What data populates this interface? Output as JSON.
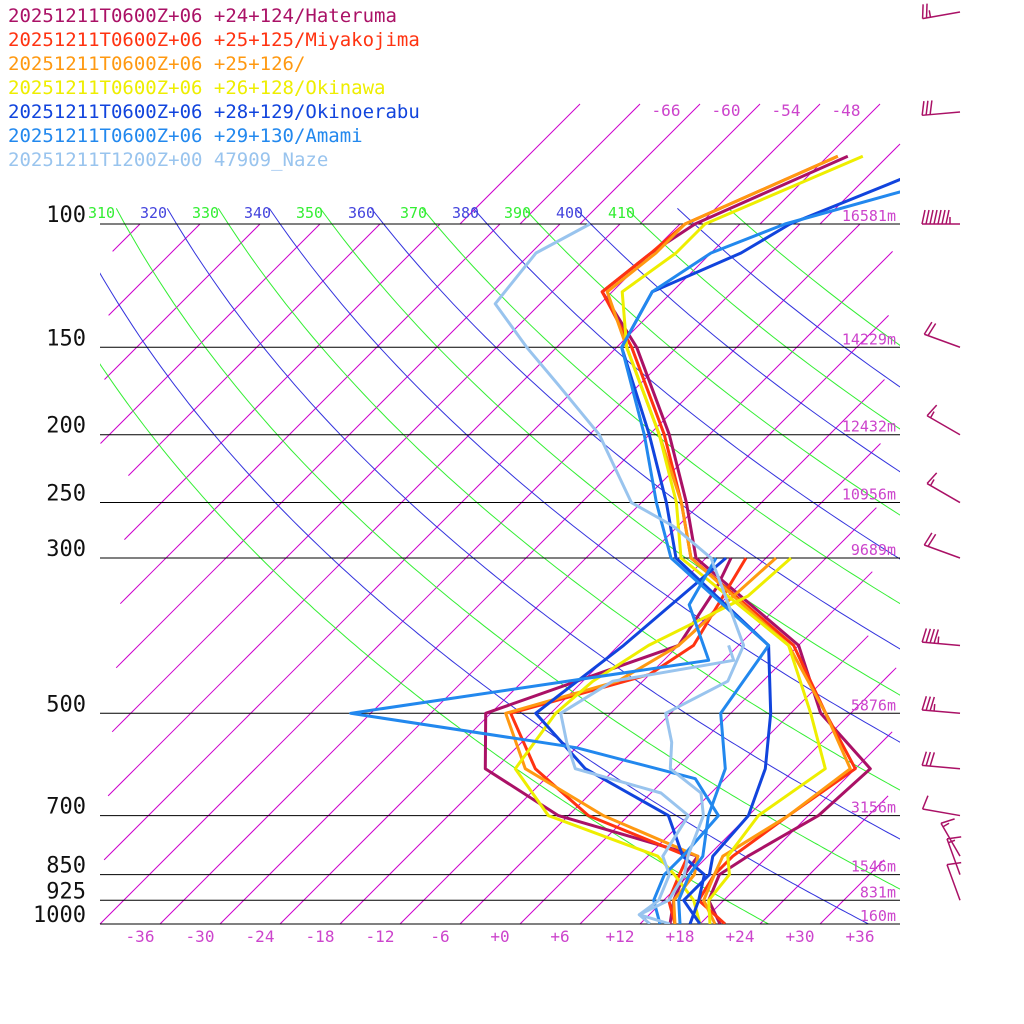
{
  "chart_data": {
    "type": "line",
    "subtype": "skew-T log-P sounding",
    "y_axis": {
      "scale": "log",
      "pressure_levels_hPa": [
        100,
        150,
        200,
        250,
        300,
        500,
        700,
        850,
        925,
        1000
      ],
      "tick_labels": [
        "100",
        "150",
        "200",
        "250",
        "300",
        "500",
        "700",
        "850",
        "925",
        "1000"
      ],
      "range_hPa": [
        1000,
        80
      ]
    },
    "x_axis": {
      "tick_labels": [
        "-36",
        "-30",
        "-24",
        "-18",
        "-12",
        "-6",
        "+0",
        "+6",
        "+12",
        "+18",
        "+24",
        "+30",
        "+36"
      ],
      "range_C": [
        -40,
        40
      ]
    },
    "height_labels": [
      {
        "p": 100,
        "label": "16581m"
      },
      {
        "p": 150,
        "label": "14229m"
      },
      {
        "p": 200,
        "label": "12432m"
      },
      {
        "p": 250,
        "label": "10956m"
      },
      {
        "p": 300,
        "label": "9689m"
      },
      {
        "p": 500,
        "label": "5876m"
      },
      {
        "p": 700,
        "label": "3156m"
      },
      {
        "p": 850,
        "label": "1546m"
      },
      {
        "p": 925,
        "label": "831m"
      },
      {
        "p": 1000,
        "label": "160m"
      }
    ],
    "upper_isotherm_labels": [
      "-66",
      "-60",
      "-54",
      "-48"
    ],
    "theta_labels": [
      {
        "text": "310",
        "color": "#33ee33"
      },
      {
        "text": "320",
        "color": "#4444dd"
      },
      {
        "text": "330",
        "color": "#33ee33"
      },
      {
        "text": "340",
        "color": "#4444dd"
      },
      {
        "text": "350",
        "color": "#33ee33"
      },
      {
        "text": "360",
        "color": "#4444dd"
      },
      {
        "text": "370",
        "color": "#33ee33"
      },
      {
        "text": "380",
        "color": "#4444dd"
      },
      {
        "text": "390",
        "color": "#33ee33"
      },
      {
        "text": "400",
        "color": "#4444dd"
      },
      {
        "text": "410",
        "color": "#33ee33"
      }
    ],
    "colors": {
      "isotherm": "#cc00cc",
      "isobar": "#000000",
      "theta_a": "#33ee33",
      "theta_b": "#3333dd",
      "axis_text": "#cc44cc",
      "pressure_text": "#111111",
      "wind_barb": "#aa1166"
    },
    "series": [
      {
        "name": "20251211T0600Z+06 +24+124/Hateruma",
        "color": "#aa1166",
        "temperature": [
          [
            1000,
            22.0
          ],
          [
            925,
            18.5
          ],
          [
            850,
            17.0
          ],
          [
            800,
            18.0
          ],
          [
            700,
            21.0
          ],
          [
            600,
            21.5
          ],
          [
            500,
            11.0
          ],
          [
            400,
            2.0
          ],
          [
            300,
            -17.0
          ],
          [
            250,
            -23.5
          ],
          [
            200,
            -32.0
          ],
          [
            150,
            -44.0
          ],
          [
            125,
            -53.0
          ],
          [
            110,
            -52.0
          ],
          [
            100,
            -50.5
          ],
          [
            80,
            -42.0
          ]
        ],
        "dewpoint": [
          [
            1000,
            17.0
          ],
          [
            925,
            15.0
          ],
          [
            850,
            13.5
          ],
          [
            800,
            13.0
          ],
          [
            700,
            -5.0
          ],
          [
            600,
            -17.0
          ],
          [
            500,
            -22.5
          ],
          [
            400,
            -10.0
          ],
          [
            330,
            -12.0
          ],
          [
            300,
            -13.5
          ]
        ]
      },
      {
        "name": "20251211T0600Z+06 +25+125/Miyakojima",
        "color": "#ff3311",
        "temperature": [
          [
            1000,
            22.5
          ],
          [
            925,
            17.5
          ],
          [
            850,
            16.5
          ],
          [
            800,
            16.5
          ],
          [
            700,
            18.0
          ],
          [
            600,
            20.0
          ],
          [
            500,
            11.5
          ],
          [
            400,
            1.5
          ],
          [
            300,
            -17.5
          ],
          [
            250,
            -24.0
          ],
          [
            200,
            -32.5
          ],
          [
            150,
            -44.5
          ],
          [
            125,
            -53.0
          ],
          [
            110,
            -52.0
          ],
          [
            100,
            -51.5
          ],
          [
            80,
            -43.0
          ]
        ],
        "dewpoint": [
          [
            1000,
            17.5
          ],
          [
            925,
            14.5
          ],
          [
            850,
            13.0
          ],
          [
            800,
            12.0
          ],
          [
            700,
            -2.0
          ],
          [
            600,
            -12.0
          ],
          [
            500,
            -20.0
          ],
          [
            440,
            -10.0
          ],
          [
            400,
            -8.5
          ],
          [
            300,
            -12.0
          ]
        ]
      },
      {
        "name": "20251211T0600Z+06 +25+126/",
        "color": "#ff9911",
        "temperature": [
          [
            1000,
            21.5
          ],
          [
            925,
            18.0
          ],
          [
            850,
            16.5
          ],
          [
            800,
            15.5
          ],
          [
            700,
            18.0
          ],
          [
            600,
            19.5
          ],
          [
            500,
            11.5
          ],
          [
            400,
            1.0
          ],
          [
            300,
            -17.5
          ],
          [
            250,
            -24.0
          ],
          [
            200,
            -33.0
          ],
          [
            150,
            -45.0
          ],
          [
            125,
            -52.5
          ],
          [
            110,
            -51.5
          ],
          [
            100,
            -51.5
          ],
          [
            80,
            -43.0
          ]
        ],
        "dewpoint": [
          [
            1000,
            17.5
          ],
          [
            925,
            15.0
          ],
          [
            850,
            14.5
          ],
          [
            800,
            13.0
          ],
          [
            700,
            -0.5
          ],
          [
            600,
            -13.0
          ],
          [
            500,
            -20.5
          ],
          [
            450,
            -12.5
          ],
          [
            400,
            -10.0
          ],
          [
            300,
            -9.0
          ]
        ]
      },
      {
        "name": "20251211T0600Z+06 +26+128/Okinawa",
        "color": "#eeee00",
        "temperature": [
          [
            1000,
            21.0
          ],
          [
            925,
            18.5
          ],
          [
            850,
            18.0
          ],
          [
            800,
            16.0
          ],
          [
            700,
            15.0
          ],
          [
            600,
            17.0
          ],
          [
            500,
            10.0
          ],
          [
            400,
            1.0
          ],
          [
            300,
            -18.5
          ],
          [
            250,
            -24.5
          ],
          [
            200,
            -33.0
          ],
          [
            150,
            -45.0
          ],
          [
            125,
            -51.0
          ],
          [
            110,
            -49.5
          ],
          [
            100,
            -49.5
          ],
          [
            80,
            -40.5
          ]
        ],
        "dewpoint": [
          [
            1000,
            20.0
          ],
          [
            925,
            17.0
          ],
          [
            850,
            12.5
          ],
          [
            800,
            9.0
          ],
          [
            700,
            -6.0
          ],
          [
            600,
            -14.0
          ],
          [
            500,
            -15.5
          ],
          [
            450,
            -15.0
          ],
          [
            400,
            -13.0
          ],
          [
            340,
            -8.0
          ],
          [
            300,
            -7.5
          ]
        ]
      },
      {
        "name": "20251211T0600Z+06 +28+129/Okinoerabu",
        "color": "#1144dd",
        "temperature": [
          [
            1000,
            20.0
          ],
          [
            925,
            16.0
          ],
          [
            850,
            16.0
          ],
          [
            800,
            14.5
          ],
          [
            700,
            14.0
          ],
          [
            600,
            11.0
          ],
          [
            500,
            6.0
          ],
          [
            400,
            -1.0
          ],
          [
            300,
            -19.0
          ],
          [
            250,
            -25.5
          ],
          [
            200,
            -34.0
          ],
          [
            150,
            -45.5
          ],
          [
            125,
            -48.0
          ],
          [
            110,
            -43.0
          ],
          [
            100,
            -41.0
          ],
          [
            80,
            -31.0
          ]
        ],
        "dewpoint": [
          [
            1000,
            19.0
          ],
          [
            925,
            17.5
          ],
          [
            850,
            15.5
          ],
          [
            800,
            11.5
          ],
          [
            700,
            6.0
          ],
          [
            600,
            -7.0
          ],
          [
            500,
            -17.5
          ],
          [
            400,
            -15.5
          ],
          [
            300,
            -14.0
          ]
        ]
      },
      {
        "name": "20251211T0600Z+06 +29+130/Amami",
        "color": "#2288ee",
        "temperature": [
          [
            1000,
            18.0
          ],
          [
            925,
            15.5
          ],
          [
            850,
            14.0
          ],
          [
            800,
            13.5
          ],
          [
            700,
            10.0
          ],
          [
            600,
            7.0
          ],
          [
            500,
            1.0
          ],
          [
            400,
            -1.0
          ],
          [
            300,
            -19.5
          ],
          [
            250,
            -26.5
          ],
          [
            200,
            -34.5
          ],
          [
            150,
            -45.5
          ],
          [
            125,
            -48.0
          ],
          [
            110,
            -46.0
          ],
          [
            100,
            -41.5
          ],
          [
            80,
            -24.0
          ]
        ],
        "dewpoint": [
          [
            1000,
            16.0
          ],
          [
            925,
            13.0
          ],
          [
            850,
            11.5
          ],
          [
            800,
            11.5
          ],
          [
            700,
            11.0
          ],
          [
            620,
            5.0
          ],
          [
            560,
            -10.0
          ],
          [
            500,
            -36.0
          ],
          [
            420,
            -5.5
          ],
          [
            350,
            -13.0
          ],
          [
            300,
            -15.0
          ]
        ]
      },
      {
        "name": "20251211T1200Z+00 47909_Naze",
        "color": "#99c4ee",
        "temperature": [
          [
            1000,
            15.0
          ],
          [
            970,
            13.0
          ],
          [
            925,
            14.5
          ],
          [
            850,
            13.5
          ],
          [
            800,
            12.0
          ],
          [
            700,
            9.5
          ],
          [
            650,
            7.0
          ],
          [
            600,
            1.5
          ],
          [
            550,
            -1.0
          ],
          [
            500,
            -4.5
          ],
          [
            450,
            -1.5
          ],
          [
            400,
            -3.5
          ],
          [
            330,
            -11.5
          ],
          [
            300,
            -15.5
          ],
          [
            270,
            -22.5
          ],
          [
            250,
            -29.0
          ],
          [
            200,
            -39.0
          ],
          [
            170,
            -48.0
          ],
          [
            150,
            -55.0
          ],
          [
            130,
            -62.5
          ],
          [
            110,
            -63.5
          ],
          [
            100,
            -61.0
          ]
        ],
        "dewpoint": [
          [
            1000,
            17.0
          ],
          [
            970,
            13.0
          ],
          [
            925,
            13.5
          ],
          [
            850,
            12.0
          ],
          [
            800,
            9.5
          ],
          [
            700,
            8.0
          ],
          [
            650,
            3.0
          ],
          [
            600,
            -8.0
          ],
          [
            550,
            -11.5
          ],
          [
            500,
            -15.0
          ],
          [
            450,
            -13.0
          ],
          [
            420,
            -3.0
          ],
          [
            400,
            -5.0
          ]
        ]
      }
    ],
    "wind_barbs": [
      {
        "p": 80,
        "speed_kt": 25,
        "dir_deg": 260
      },
      {
        "p": 90,
        "speed_kt": 30,
        "dir_deg": 265
      },
      {
        "p": 100,
        "speed_kt": 75,
        "dir_deg": 270
      },
      {
        "p": 150,
        "speed_kt": 20,
        "dir_deg": 290
      },
      {
        "p": 200,
        "speed_kt": 15,
        "dir_deg": 300
      },
      {
        "p": 250,
        "speed_kt": 15,
        "dir_deg": 300
      },
      {
        "p": 300,
        "speed_kt": 20,
        "dir_deg": 290
      },
      {
        "p": 400,
        "speed_kt": 45,
        "dir_deg": 275
      },
      {
        "p": 500,
        "speed_kt": 35,
        "dir_deg": 275
      },
      {
        "p": 600,
        "speed_kt": 30,
        "dir_deg": 275
      },
      {
        "p": 700,
        "speed_kt": 10,
        "dir_deg": 280
      },
      {
        "p": 800,
        "speed_kt": 15,
        "dir_deg": 330
      },
      {
        "p": 850,
        "speed_kt": 15,
        "dir_deg": 340
      },
      {
        "p": 925,
        "speed_kt": 10,
        "dir_deg": 340
      }
    ]
  }
}
